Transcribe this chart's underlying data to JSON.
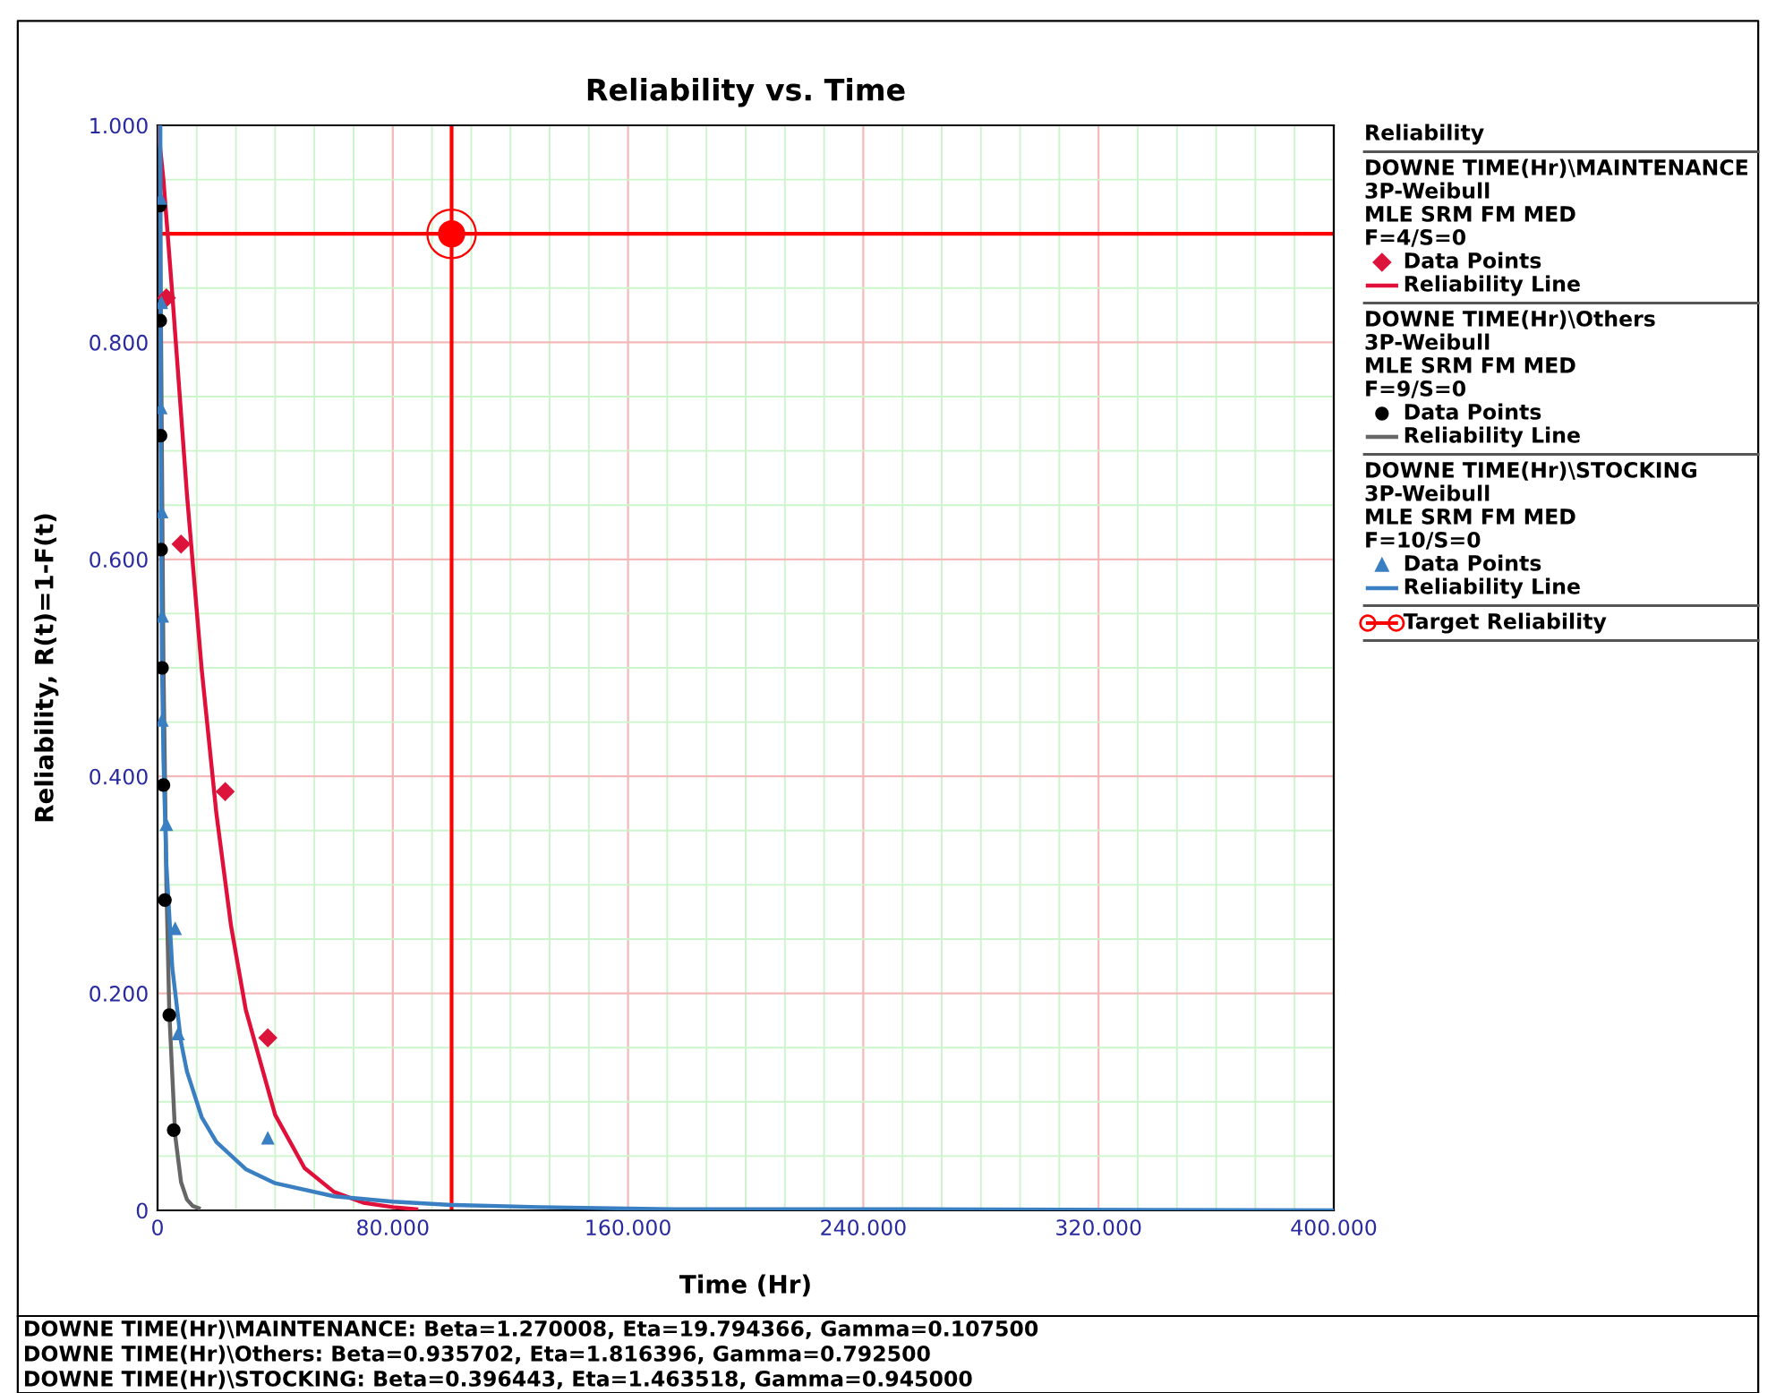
{
  "chart_data": {
    "type": "scatter",
    "title": "Reliability vs. Time",
    "xlabel": "Time (Hr)",
    "ylabel": "Reliability, R(t)=1-F(t)",
    "legend_title": "Reliability",
    "xlim": [
      0,
      400
    ],
    "xticks": [
      0,
      {
        "value": 13.33,
        "label": null
      },
      {
        "value": 26.67,
        "label": null
      },
      {
        "value": 40,
        "label": null
      },
      {
        "value": 53.33,
        "label": null
      },
      {
        "value": 66.67,
        "label": null
      },
      {
        "value": 80,
        "label": "80.000"
      },
      {
        "value": 93.33,
        "label": null
      },
      {
        "value": 106.67,
        "label": null
      },
      {
        "value": 120,
        "label": null
      },
      {
        "value": 133.33,
        "label": null
      },
      {
        "value": 146.67,
        "label": null
      },
      {
        "value": 160,
        "label": "160.000"
      },
      {
        "value": 173.33,
        "label": null
      },
      {
        "value": 186.67,
        "label": null
      },
      {
        "value": 200,
        "label": null
      },
      {
        "value": 213.33,
        "label": null
      },
      {
        "value": 226.67,
        "label": null
      },
      {
        "value": 240,
        "label": "240.000"
      },
      {
        "value": 253.33,
        "label": null
      },
      {
        "value": 266.67,
        "label": null
      },
      {
        "value": 280,
        "label": null
      },
      {
        "value": 293.33,
        "label": null
      },
      {
        "value": 306.67,
        "label": null
      },
      {
        "value": 320,
        "label": "320.000"
      },
      {
        "value": 333.33,
        "label": null
      },
      {
        "value": 346.67,
        "label": null
      },
      {
        "value": 360,
        "label": null
      },
      {
        "value": 373.33,
        "label": null
      },
      {
        "value": 386.67,
        "label": null
      },
      {
        "value": 400,
        "label": "400.000"
      }
    ],
    "ylim": [
      0,
      1
    ],
    "yticks": [
      0,
      {
        "value": 0.05,
        "label": null
      },
      {
        "value": 0.1,
        "label": null
      },
      {
        "value": 0.15,
        "label": null
      },
      {
        "value": 0.2,
        "label": "0.200"
      },
      {
        "value": 0.25,
        "label": null
      },
      {
        "value": 0.3,
        "label": null
      },
      {
        "value": 0.35,
        "label": null
      },
      {
        "value": 0.4,
        "label": "0.400"
      },
      {
        "value": 0.45,
        "label": null
      },
      {
        "value": 0.5,
        "label": null
      },
      {
        "value": 0.55,
        "label": null
      },
      {
        "value": 0.6,
        "label": "0.600"
      },
      {
        "value": 0.65,
        "label": null
      },
      {
        "value": 0.7,
        "label": null
      },
      {
        "value": 0.75,
        "label": null
      },
      {
        "value": 0.8,
        "label": "0.800"
      },
      {
        "value": 0.85,
        "label": null
      },
      {
        "value": 0.9,
        "label": null
      },
      {
        "value": 0.95,
        "label": null
      },
      {
        "value": 1,
        "label": "1.000"
      }
    ],
    "grid": true,
    "legend": "right",
    "series": [
      {
        "name": "Data Points",
        "type": "scatter",
        "marker": "diamond",
        "color": "#dc143c",
        "x": [
          3,
          8,
          23,
          37.5
        ],
        "values": [
          0.841,
          0.614,
          0.386,
          0.159
        ]
      },
      {
        "name": "Reliability Line",
        "type": "line",
        "marker": "none",
        "color": "#e0103a",
        "x": [
          0.1,
          2,
          5,
          10,
          15,
          20,
          25,
          30,
          40,
          50,
          60,
          70,
          80,
          88
        ],
        "values": [
          1.0,
          0.95,
          0.845,
          0.66,
          0.499,
          0.366,
          0.262,
          0.185,
          0.088,
          0.039,
          0.017,
          0.007,
          0.003,
          0.001
        ]
      },
      {
        "name": "Data Points",
        "type": "scatter",
        "marker": "circle",
        "color": "#000000",
        "x": [
          0.8,
          0.9,
          1,
          1.2,
          1.5,
          2,
          2.5,
          4,
          5.5
        ],
        "values": [
          0.926,
          0.82,
          0.714,
          0.609,
          0.5,
          0.392,
          0.286,
          0.18,
          0.074
        ]
      },
      {
        "name": "Reliability Line",
        "type": "line",
        "marker": "none",
        "color": "#666666",
        "x": [
          0.8,
          1,
          2,
          3,
          4,
          6,
          8,
          10,
          12,
          14
        ],
        "values": [
          1.0,
          0.877,
          0.505,
          0.301,
          0.182,
          0.069,
          0.026,
          0.01,
          0.004,
          0.002
        ]
      },
      {
        "name": "Data Points",
        "type": "scatter",
        "marker": "triangle",
        "color": "#3a7fc1",
        "x": [
          1,
          1.3,
          1.1,
          1.4,
          1.6,
          1.5,
          3,
          6,
          7,
          37.5
        ],
        "values": [
          0.933,
          0.837,
          0.74,
          0.644,
          0.548,
          0.452,
          0.356,
          0.26,
          0.163,
          0.067
        ]
      },
      {
        "name": "Reliability Line",
        "type": "line",
        "marker": "none",
        "color": "#3a7fc1",
        "x": [
          0.95,
          1,
          1.5,
          2,
          3,
          5,
          8,
          10,
          15,
          20,
          30,
          40,
          60,
          80,
          100,
          130,
          175,
          250,
          400
        ],
        "values": [
          1.0,
          0.761,
          0.506,
          0.416,
          0.319,
          0.224,
          0.155,
          0.128,
          0.086,
          0.063,
          0.038,
          0.025,
          0.013,
          0.008,
          0.005,
          0.003,
          0.001,
          0.001,
          0.0
        ]
      },
      {
        "name": "Target Reliability",
        "type": "scatter",
        "marker": "circle",
        "color": "#ff0000",
        "x": [
          100
        ],
        "values": [
          0.9
        ]
      }
    ],
    "ref_lines": [
      {
        "axis": "x",
        "value": 100,
        "color": "#ff0000"
      },
      {
        "axis": "y",
        "value": 0.9,
        "color": "#ff0000"
      }
    ],
    "annotations": [
      "DOWNE TIME(Hr)\\MAINTENANCE\n3P-Weibull\nMLE SRM FM MED\nF=4/S=0",
      "DOWNE TIME(Hr)\\Others\n3P-Weibull\nMLE SRM FM MED\nF=9/S=0",
      "DOWNE TIME(Hr)\\STOCKING\n3P-Weibull\nMLE SRM FM MED\nF=10/S=0",
      "DOWNE TIME(Hr)\\MAINTENANCE: Beta=1.270008, Eta=19.794366, Gamma=0.107500",
      "DOWNE TIME(Hr)\\Others: Beta=0.935702, Eta=1.816396, Gamma=0.792500",
      "DOWNE TIME(Hr)\\STOCKING: Beta=0.396443, Eta=1.463518, Gamma=0.945000"
    ]
  }
}
